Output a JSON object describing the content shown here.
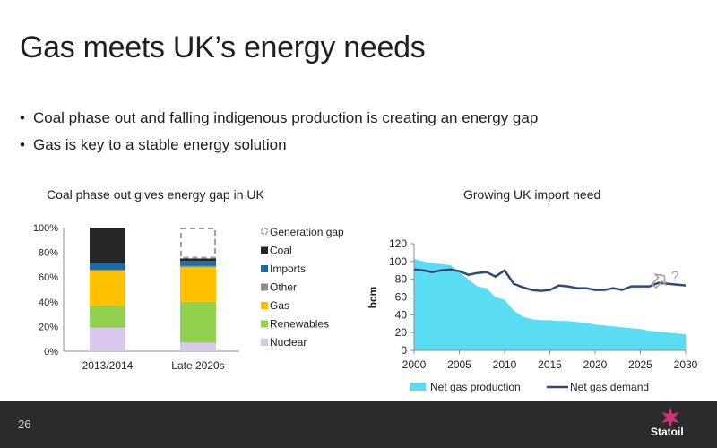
{
  "slide": {
    "title": "Gas meets UK’s energy needs",
    "bullets": [
      "Coal phase out and falling indigenous production is creating an energy gap",
      "Gas is key to a stable energy solution"
    ],
    "page_number": "26",
    "logo_text": "Statoil"
  },
  "colors": {
    "generation_gap": "#9e9e9e",
    "coal": "#262626",
    "imports": "#1a6aa8",
    "other": "#8c8c8c",
    "gas": "#ffc000",
    "renewables": "#92d050",
    "nuclear": "#d9c6ec",
    "net_gas_production": "#5bdcf5",
    "net_gas_demand": "#2e4a7a",
    "footer": "#2b2b2b",
    "logo": "#d6307a"
  },
  "chart_data": [
    {
      "type": "bar",
      "stacked": true,
      "title": "Coal phase out gives energy gap in UK",
      "categories": [
        "2013/2014",
        "Late 2020s"
      ],
      "ylim": [
        0,
        100
      ],
      "yticks": [
        "0%",
        "20%",
        "40%",
        "60%",
        "80%",
        "100%"
      ],
      "series": [
        {
          "name": "Nuclear",
          "values": [
            19,
            7
          ]
        },
        {
          "name": "Renewables",
          "values": [
            18,
            33
          ]
        },
        {
          "name": "Gas",
          "values": [
            28,
            28
          ]
        },
        {
          "name": "Other",
          "values": [
            1,
            1
          ]
        },
        {
          "name": "Imports",
          "values": [
            5,
            4
          ]
        },
        {
          "name": "Coal",
          "values": [
            29,
            2
          ]
        },
        {
          "name": "Generation gap",
          "values": [
            0,
            25
          ]
        }
      ],
      "legend": [
        "Generation gap",
        "Coal",
        "Imports",
        "Other",
        "Gas",
        "Renewables",
        "Nuclear"
      ],
      "legend_position": "right"
    },
    {
      "type": "area",
      "title": "Growing UK import need",
      "ylabel": "bcm",
      "xlim": [
        2000,
        2030
      ],
      "ylim": [
        0,
        120
      ],
      "xticks": [
        "2000",
        "2005",
        "2010",
        "2015",
        "2020",
        "2025",
        "2030"
      ],
      "yticks": [
        "0",
        "10",
        "20",
        "30",
        "40",
        "50",
        "60",
        "70",
        "80",
        "90",
        "100",
        "110",
        "120"
      ],
      "x": [
        2000,
        2001,
        2002,
        2003,
        2004,
        2005,
        2006,
        2007,
        2008,
        2009,
        2010,
        2011,
        2012,
        2013,
        2014,
        2015,
        2016,
        2017,
        2018,
        2019,
        2020,
        2021,
        2022,
        2023,
        2024,
        2025,
        2026,
        2027,
        2028,
        2029,
        2030
      ],
      "series": [
        {
          "name": "Net gas production",
          "kind": "area",
          "values": [
            103,
            100,
            98,
            97,
            96,
            88,
            80,
            72,
            70,
            60,
            57,
            45,
            38,
            35,
            34,
            34,
            33,
            33,
            32,
            31,
            29,
            28,
            27,
            26,
            25,
            24,
            22,
            21,
            20,
            19,
            18
          ]
        },
        {
          "name": "Net gas demand",
          "kind": "line",
          "values": [
            91,
            90,
            88,
            90,
            91,
            89,
            85,
            87,
            88,
            83,
            90,
            75,
            71,
            68,
            67,
            68,
            73,
            72,
            70,
            70,
            68,
            68,
            70,
            68,
            72,
            72,
            72,
            76,
            75,
            74,
            73
          ]
        }
      ],
      "annotation": "?",
      "legend_position": "bottom"
    }
  ]
}
